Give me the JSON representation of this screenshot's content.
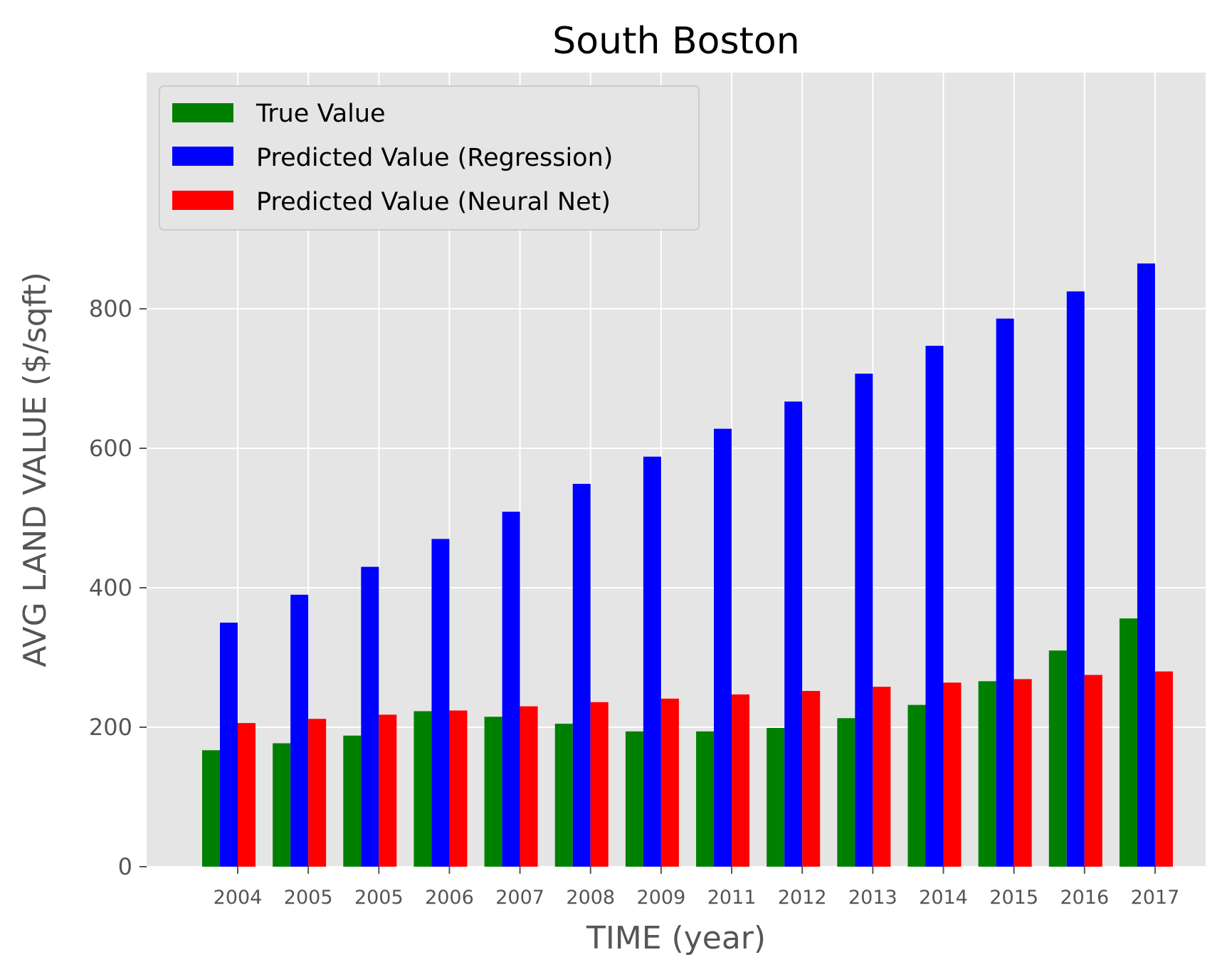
{
  "chart_data": {
    "type": "bar",
    "title": "South Boston",
    "xlabel": "TIME (year)",
    "ylabel": "AVG LAND VALUE ($/sqft)",
    "ylim": [
      0,
      900
    ],
    "yticks": [
      0,
      200,
      400,
      600,
      800
    ],
    "grid": true,
    "legend_position": "top-left",
    "categories": [
      "2004",
      "2005",
      "2005",
      "2006",
      "2007",
      "2008",
      "2009",
      "2011",
      "2012",
      "2013",
      "2014",
      "2015",
      "2016",
      "2017"
    ],
    "series": [
      {
        "name": "True Value",
        "color": "#008000",
        "values": [
          167,
          177,
          188,
          223,
          215,
          205,
          194,
          194,
          199,
          213,
          232,
          266,
          310,
          356
        ]
      },
      {
        "name": "Predicted Value (Regression)",
        "color": "#0000ff",
        "values": [
          350,
          390,
          430,
          470,
          509,
          549,
          588,
          628,
          667,
          707,
          747,
          786,
          825,
          865
        ]
      },
      {
        "name": "Predicted Value (Neural Net)",
        "color": "#ff0000",
        "values": [
          206,
          212,
          218,
          224,
          230,
          236,
          241,
          247,
          252,
          258,
          264,
          269,
          275,
          280
        ]
      }
    ]
  }
}
